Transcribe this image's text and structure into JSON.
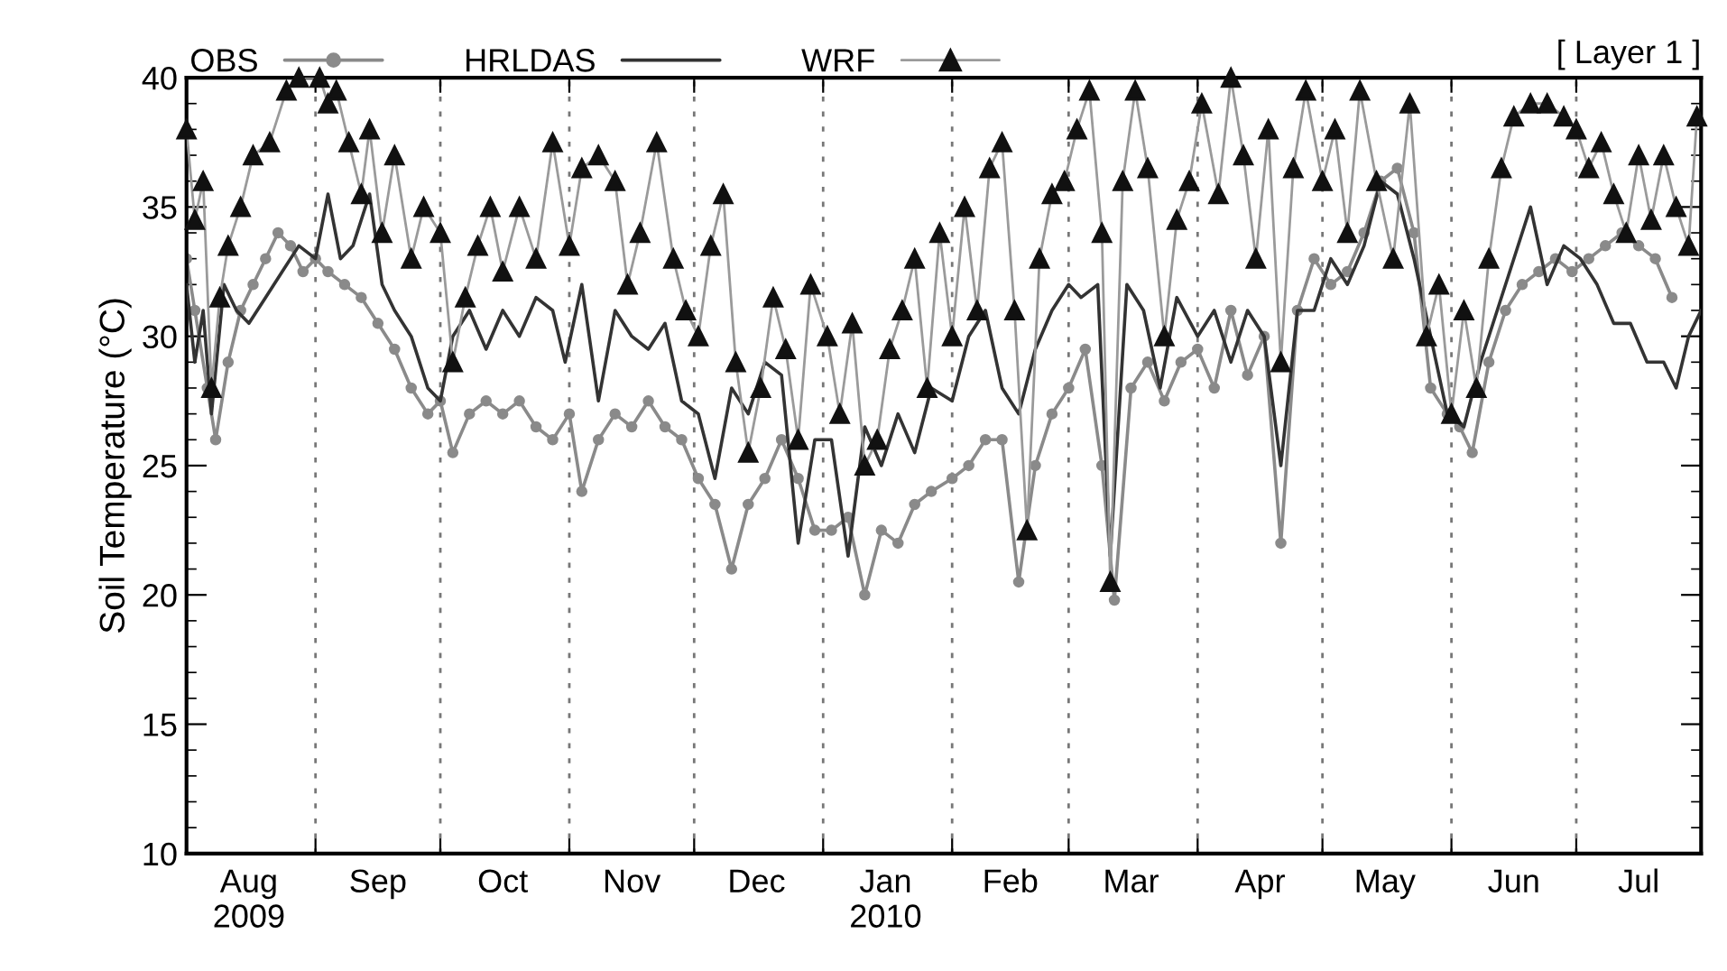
{
  "chart_data": {
    "type": "line",
    "ylabel": "Soil Temperature (°C)",
    "annotations": [
      "[ Layer 1 ]"
    ],
    "xlim": [
      "2009-08-01",
      "2010-07-31"
    ],
    "ylim": [
      10,
      40
    ],
    "yticks": [
      10,
      15,
      20,
      25,
      30,
      35,
      40
    ],
    "xticks": [
      {
        "value": "2009-08-16",
        "label": "Aug\n2009"
      },
      {
        "value": "2009-09-01",
        "label": null
      },
      {
        "value": "2009-09-16",
        "label": "Sep"
      },
      {
        "value": "2009-10-01",
        "label": null
      },
      {
        "value": "2009-10-16",
        "label": "Oct"
      },
      {
        "value": "2009-11-01",
        "label": null
      },
      {
        "value": "2009-11-16",
        "label": "Nov"
      },
      {
        "value": "2009-12-01",
        "label": null
      },
      {
        "value": "2009-12-16",
        "label": "Dec"
      },
      {
        "value": "2010-01-01",
        "label": null
      },
      {
        "value": "2010-01-16",
        "label": "Jan\n2010"
      },
      {
        "value": "2010-02-01",
        "label": null
      },
      {
        "value": "2010-02-15",
        "label": "Feb"
      },
      {
        "value": "2010-03-01",
        "label": null
      },
      {
        "value": "2010-03-16",
        "label": "Mar"
      },
      {
        "value": "2010-04-01",
        "label": null
      },
      {
        "value": "2010-04-16",
        "label": "Apr"
      },
      {
        "value": "2010-05-01",
        "label": null
      },
      {
        "value": "2010-05-16",
        "label": "May"
      },
      {
        "value": "2010-06-01",
        "label": null
      },
      {
        "value": "2010-06-16",
        "label": "Jun"
      },
      {
        "value": "2010-07-01",
        "label": null
      },
      {
        "value": "2010-07-16",
        "label": "Jul"
      }
    ],
    "grid": "x",
    "legend": "top left",
    "series": [
      {
        "name": "OBS",
        "color": "#8a8a8a",
        "marker": "circle",
        "x": [
          "2009-08-01",
          "2009-08-03",
          "2009-08-06",
          "2009-08-08",
          "2009-08-11",
          "2009-08-14",
          "2009-08-17",
          "2009-08-20",
          "2009-08-23",
          "2009-08-26",
          "2009-08-29",
          "2009-09-01",
          "2009-09-04",
          "2009-09-08",
          "2009-09-12",
          "2009-09-16",
          "2009-09-20",
          "2009-09-24",
          "2009-09-28",
          "2009-10-01",
          "2009-10-04",
          "2009-10-08",
          "2009-10-12",
          "2009-10-16",
          "2009-10-20",
          "2009-10-24",
          "2009-10-28",
          "2009-11-01",
          "2009-11-04",
          "2009-11-08",
          "2009-11-12",
          "2009-11-16",
          "2009-11-20",
          "2009-11-24",
          "2009-11-28",
          "2009-12-02",
          "2009-12-06",
          "2009-12-10",
          "2009-12-14",
          "2009-12-18",
          "2009-12-22",
          "2009-12-26",
          "2009-12-30",
          "2010-01-03",
          "2010-01-07",
          "2010-01-11",
          "2010-01-15",
          "2010-01-19",
          "2010-01-23",
          "2010-01-27",
          "2010-02-01",
          "2010-02-05",
          "2010-02-09",
          "2010-02-13",
          "2010-02-17",
          "2010-02-21",
          "2010-02-25",
          "2010-03-01",
          "2010-03-05",
          "2010-03-09",
          "2010-03-12",
          "2010-03-16",
          "2010-03-20",
          "2010-03-24",
          "2010-03-28",
          "2010-04-01",
          "2010-04-05",
          "2010-04-09",
          "2010-04-13",
          "2010-04-17",
          "2010-04-21",
          "2010-04-25",
          "2010-04-29",
          "2010-05-03",
          "2010-05-07",
          "2010-05-11",
          "2010-05-15",
          "2010-05-19",
          "2010-05-23",
          "2010-05-27",
          "2010-05-31",
          "2010-06-03",
          "2010-06-06",
          "2010-06-10",
          "2010-06-14",
          "2010-06-18",
          "2010-06-22",
          "2010-06-26",
          "2010-06-30",
          "2010-07-04",
          "2010-07-08",
          "2010-07-12",
          "2010-07-16",
          "2010-07-20",
          "2010-07-24"
        ],
        "values": [
          33,
          31,
          28,
          26,
          29,
          31,
          32,
          33,
          34,
          33.5,
          32.5,
          33,
          32.5,
          32,
          31.5,
          30.5,
          29.5,
          28,
          27,
          27.5,
          25.5,
          27,
          27.5,
          27,
          27.5,
          26.5,
          26,
          27,
          24,
          26,
          27,
          26.5,
          27.5,
          26.5,
          26,
          24.5,
          23.5,
          21,
          23.5,
          24.5,
          26,
          24.5,
          22.5,
          22.5,
          23,
          20,
          22.5,
          22,
          23.5,
          24,
          24.5,
          25,
          26,
          26,
          20.5,
          25,
          27,
          28,
          29.5,
          25,
          19.8,
          28,
          29,
          27.5,
          29,
          29.5,
          28,
          31,
          28.5,
          30,
          22,
          31,
          33,
          32,
          32.5,
          34,
          36,
          36.5,
          34,
          28,
          27,
          26.5,
          25.5,
          29,
          31,
          32,
          32.5,
          33,
          32.5,
          33,
          33.5,
          34,
          33.5,
          33,
          31.5
        ]
      },
      {
        "name": "HRLDAS",
        "color": "#333333",
        "marker": "none",
        "x": [
          "2009-08-01",
          "2009-08-03",
          "2009-08-05",
          "2009-08-07",
          "2009-08-10",
          "2009-08-13",
          "2009-08-16",
          "2009-08-20",
          "2009-08-24",
          "2009-08-28",
          "2009-09-01",
          "2009-09-04",
          "2009-09-07",
          "2009-09-10",
          "2009-09-14",
          "2009-09-17",
          "2009-09-20",
          "2009-09-24",
          "2009-09-28",
          "2009-10-01",
          "2009-10-04",
          "2009-10-08",
          "2009-10-12",
          "2009-10-16",
          "2009-10-20",
          "2009-10-24",
          "2009-10-28",
          "2009-10-31",
          "2009-11-04",
          "2009-11-08",
          "2009-11-12",
          "2009-11-16",
          "2009-11-20",
          "2009-11-24",
          "2009-11-28",
          "2009-12-02",
          "2009-12-06",
          "2009-12-10",
          "2009-12-14",
          "2009-12-18",
          "2009-12-22",
          "2009-12-26",
          "2009-12-30",
          "2010-01-03",
          "2010-01-07",
          "2010-01-11",
          "2010-01-15",
          "2010-01-19",
          "2010-01-23",
          "2010-01-27",
          "2010-02-01",
          "2010-02-05",
          "2010-02-09",
          "2010-02-13",
          "2010-02-17",
          "2010-02-21",
          "2010-02-25",
          "2010-03-01",
          "2010-03-04",
          "2010-03-08",
          "2010-03-11",
          "2010-03-15",
          "2010-03-19",
          "2010-03-23",
          "2010-03-27",
          "2010-04-01",
          "2010-04-05",
          "2010-04-09",
          "2010-04-13",
          "2010-04-17",
          "2010-04-21",
          "2010-04-25",
          "2010-04-29",
          "2010-05-03",
          "2010-05-07",
          "2010-05-11",
          "2010-05-15",
          "2010-05-19",
          "2010-05-23",
          "2010-05-27",
          "2010-05-31",
          "2010-06-04",
          "2010-06-08",
          "2010-06-12",
          "2010-06-16",
          "2010-06-20",
          "2010-06-24",
          "2010-06-28",
          "2010-07-02",
          "2010-07-06",
          "2010-07-10",
          "2010-07-14",
          "2010-07-18",
          "2010-07-22",
          "2010-07-25",
          "2010-07-28",
          "2010-07-31"
        ],
        "values": [
          32,
          29,
          31,
          27,
          32,
          31,
          30.5,
          31.5,
          32.5,
          33.5,
          33,
          35.5,
          33,
          33.5,
          35.5,
          32,
          31,
          30,
          28,
          27.5,
          30,
          31,
          29.5,
          31,
          30,
          31.5,
          31,
          29,
          32,
          27.5,
          31,
          30,
          29.5,
          30.5,
          27.5,
          27,
          24.5,
          28,
          27,
          29,
          28.5,
          22,
          26,
          26,
          21.5,
          26.5,
          25,
          27,
          25.5,
          28,
          27.5,
          30,
          31,
          28,
          27,
          29.5,
          31,
          32,
          31.5,
          32,
          21.5,
          32,
          31,
          28,
          31.5,
          30,
          31,
          29,
          31,
          30,
          25,
          31,
          31,
          33,
          32,
          33.5,
          36,
          35.5,
          33,
          30,
          27,
          26.5,
          29,
          31,
          33,
          35,
          32,
          33.5,
          33,
          32,
          30.5,
          30.5,
          29,
          29,
          28,
          30,
          31
        ]
      },
      {
        "name": "WRF",
        "color": "#111111",
        "marker": "triangle",
        "x": [
          "2009-08-01",
          "2009-08-03",
          "2009-08-05",
          "2009-08-07",
          "2009-08-09",
          "2009-08-11",
          "2009-08-14",
          "2009-08-17",
          "2009-08-21",
          "2009-08-25",
          "2009-08-28",
          "2009-09-02",
          "2009-09-04",
          "2009-09-06",
          "2009-09-09",
          "2009-09-12",
          "2009-09-14",
          "2009-09-17",
          "2009-09-20",
          "2009-09-24",
          "2009-09-27",
          "2009-10-01",
          "2009-10-04",
          "2009-10-07",
          "2009-10-10",
          "2009-10-13",
          "2009-10-16",
          "2009-10-20",
          "2009-10-24",
          "2009-10-28",
          "2009-11-01",
          "2009-11-04",
          "2009-11-08",
          "2009-11-12",
          "2009-11-15",
          "2009-11-18",
          "2009-11-22",
          "2009-11-26",
          "2009-11-29",
          "2009-12-02",
          "2009-12-05",
          "2009-12-08",
          "2009-12-11",
          "2009-12-14",
          "2009-12-17",
          "2009-12-20",
          "2009-12-23",
          "2009-12-26",
          "2009-12-29",
          "2010-01-02",
          "2010-01-05",
          "2010-01-08",
          "2010-01-11",
          "2010-01-14",
          "2010-01-17",
          "2010-01-20",
          "2010-01-23",
          "2010-01-26",
          "2010-01-29",
          "2010-02-01",
          "2010-02-04",
          "2010-02-07",
          "2010-02-10",
          "2010-02-13",
          "2010-02-16",
          "2010-02-19",
          "2010-02-22",
          "2010-02-25",
          "2010-02-28",
          "2010-03-03",
          "2010-03-06",
          "2010-03-09",
          "2010-03-11",
          "2010-03-14",
          "2010-03-17",
          "2010-03-20",
          "2010-03-24",
          "2010-03-27",
          "2010-03-30",
          "2010-04-02",
          "2010-04-06",
          "2010-04-09",
          "2010-04-12",
          "2010-04-15",
          "2010-04-18",
          "2010-04-21",
          "2010-04-24",
          "2010-04-27",
          "2010-05-01",
          "2010-05-04",
          "2010-05-07",
          "2010-05-10",
          "2010-05-14",
          "2010-05-18",
          "2010-05-22",
          "2010-05-26",
          "2010-05-29",
          "2010-06-01",
          "2010-06-04",
          "2010-06-07",
          "2010-06-10",
          "2010-06-13",
          "2010-06-16",
          "2010-06-20",
          "2010-06-24",
          "2010-06-28",
          "2010-07-01",
          "2010-07-04",
          "2010-07-07",
          "2010-07-10",
          "2010-07-13",
          "2010-07-16",
          "2010-07-19",
          "2010-07-22",
          "2010-07-25",
          "2010-07-28",
          "2010-07-30"
        ],
        "values": [
          38,
          34.5,
          36,
          28,
          31.5,
          33.5,
          35,
          37,
          37.5,
          39.5,
          40,
          40,
          39,
          39.5,
          37.5,
          35.5,
          38,
          34,
          37,
          33,
          35,
          34,
          29,
          31.5,
          33.5,
          35,
          32.5,
          35,
          33,
          37.5,
          33.5,
          36.5,
          37,
          36,
          32,
          34,
          37.5,
          33,
          31,
          30,
          33.5,
          35.5,
          29,
          25.5,
          28,
          31.5,
          29.5,
          26,
          32,
          30,
          27,
          30.5,
          25,
          26,
          29.5,
          31,
          33,
          28,
          34,
          30,
          35,
          31,
          36.5,
          37.5,
          31,
          22.5,
          33,
          35.5,
          36,
          38,
          39.5,
          34,
          20.5,
          36,
          39.5,
          36.5,
          30,
          34.5,
          36,
          39,
          35.5,
          40,
          37,
          33,
          38,
          29,
          36.5,
          39.5,
          36,
          38,
          34,
          39.5,
          36,
          33,
          39,
          30,
          32,
          27,
          31,
          28,
          33,
          36.5,
          38.5,
          39,
          39,
          38.5,
          38,
          36.5,
          37.5,
          35.5,
          34,
          37,
          34.5,
          37,
          35,
          33.5,
          38.5
        ]
      }
    ]
  }
}
